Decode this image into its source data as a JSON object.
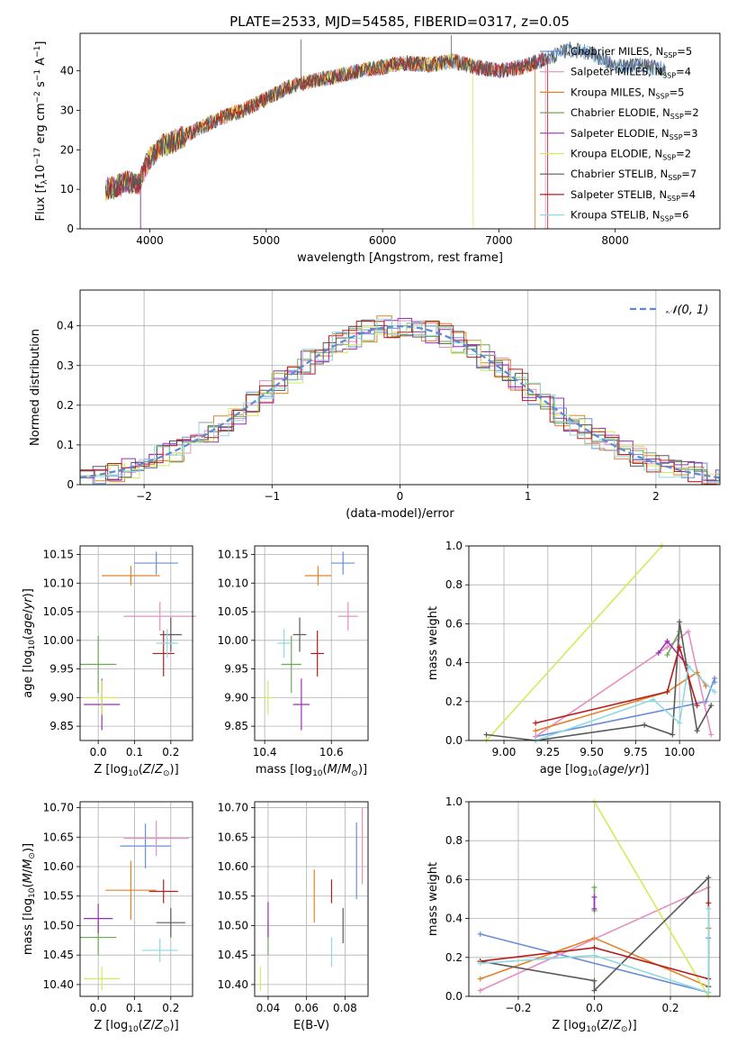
{
  "figure": {
    "title": "PLATE=2533, MJD=54585, FIBERID=0317, z=0.05"
  },
  "colors": {
    "Chabrier MILES": "#6b8ed8",
    "Salpeter MILES": "#e68fc2",
    "Kroupa MILES": "#e2822b",
    "Chabrier ELODIE": "#6ea75a",
    "Salpeter ELODIE": "#9b2fb8",
    "Kroupa ELODIE": "#d4ea5c",
    "Chabrier STELIB": "#5a5a5a",
    "Salpeter STELIB": "#b81d1d",
    "Kroupa STELIB": "#8fd9e0",
    "normal": "#5b8ad3"
  },
  "chart_data": [
    {
      "id": "spectrum",
      "type": "line",
      "title": "PLATE=2533, MJD=54585, FIBERID=0317, z=0.05",
      "xlabel": "wavelength [Angstrom, rest frame]",
      "ylabel": "Flux [f_λ 10^-17 erg cm^-2 s^-1 A^-1]",
      "xlim": [
        3400,
        8900
      ],
      "ylim": [
        0,
        49.5
      ],
      "xticks": [
        4000,
        5000,
        6000,
        7000,
        8000
      ],
      "yticks": [
        0,
        10,
        20,
        30,
        40
      ],
      "grid": false,
      "legend_position": "top-right",
      "legend": [
        "Chabrier MILES, N_SSP=5",
        "Salpeter MILES, N_SSP=4",
        "Kroupa MILES, N_SSP=5",
        "Chabrier ELODIE, N_SSP=2",
        "Salpeter ELODIE, N_SSP=3",
        "Kroupa ELODIE, N_SSP=2",
        "Chabrier STELIB, N_SSP=7",
        "Salpeter STELIB, N_SSP=4",
        "Kroupa STELIB, N_SSP=6"
      ],
      "continuum": {
        "x": [
          3620,
          3700,
          3800,
          3900,
          3950,
          4000,
          4100,
          4200,
          4400,
          4600,
          4800,
          5000,
          5200,
          5400,
          5600,
          5800,
          6000,
          6200,
          6400,
          6600,
          6800,
          7000,
          7200,
          7400,
          7500,
          7600,
          7800,
          8000,
          8200,
          8500,
          8800
        ],
        "y": [
          10,
          10.5,
          12,
          11,
          15,
          18,
          21,
          22,
          25,
          28,
          30,
          33,
          36,
          37.5,
          38.5,
          40,
          41,
          42,
          41.5,
          42.5,
          41,
          40,
          41,
          43,
          44,
          45.5,
          44.5,
          41,
          41.5,
          40,
          40
        ]
      },
      "series_x_end": [
        8440,
        7400,
        7310,
        3920,
        3920,
        6780,
        8440,
        7420,
        8440
      ],
      "spikes": [
        {
          "x": 5300,
          "y": 48
        },
        {
          "x": 6590,
          "y": 49
        }
      ]
    },
    {
      "id": "residuals",
      "type": "step",
      "xlabel": "(data-model)/error",
      "ylabel": "Normed distribution",
      "xlim": [
        -2.5,
        2.5
      ],
      "ylim": [
        0,
        0.49
      ],
      "xticks": [
        -2,
        -1,
        0,
        1,
        2
      ],
      "yticks": [
        0,
        0.1,
        0.2,
        0.3,
        0.4
      ],
      "grid": true,
      "legend_position": "top-right",
      "legend": [
        "𝒩(0, 1)"
      ]
    },
    {
      "id": "age_vs_Z",
      "type": "errorbar",
      "xlabel": "Z [log10(Z/Z⊙)]",
      "ylabel": "age [log10(age/yr)]",
      "xlim": [
        -0.05,
        0.26
      ],
      "ylim": [
        9.825,
        10.165
      ],
      "xticks": [
        0,
        0.1,
        0.2
      ],
      "yticks": [
        9.85,
        9.9,
        9.95,
        10,
        10.05,
        10.1,
        10.15
      ],
      "points": [
        {
          "name": "Chabrier MILES",
          "x": 0.16,
          "y": 10.135,
          "xerr": 0.06,
          "yerr": 0.02
        },
        {
          "name": "Salpeter MILES",
          "x": 0.17,
          "y": 10.042,
          "xerr": 0.1,
          "yerr": 0.025
        },
        {
          "name": "Kroupa MILES",
          "x": 0.09,
          "y": 10.113,
          "xerr": 0.08,
          "yerr": 0.017
        },
        {
          "name": "Chabrier ELODIE",
          "x": 0,
          "y": 9.958,
          "xerr": 0.05,
          "yerr": 0.05
        },
        {
          "name": "Salpeter ELODIE",
          "x": 0.01,
          "y": 9.888,
          "xerr": 0.05,
          "yerr": 0.045
        },
        {
          "name": "Kroupa ELODIE",
          "x": 0.01,
          "y": 9.9,
          "xerr": 0.05,
          "yerr": 0.03
        },
        {
          "name": "Chabrier STELIB",
          "x": 0.2,
          "y": 10.01,
          "xerr": 0.03,
          "yerr": 0.03
        },
        {
          "name": "Salpeter STELIB",
          "x": 0.18,
          "y": 9.977,
          "xerr": 0.03,
          "yerr": 0.04
        },
        {
          "name": "Kroupa STELIB",
          "x": 0.19,
          "y": 9.995,
          "xerr": 0.03,
          "yerr": 0.025
        }
      ]
    },
    {
      "id": "age_vs_mass",
      "type": "errorbar",
      "xlabel": "mass [log10(M/M⊙)]",
      "ylabel": "",
      "xlim": [
        10.37,
        10.71
      ],
      "ylim": [
        9.825,
        10.165
      ],
      "xticks": [
        10.4,
        10.6
      ],
      "yticks": [
        9.85,
        9.9,
        9.95,
        10,
        10.05,
        10.1,
        10.15
      ],
      "points": [
        {
          "name": "Chabrier MILES",
          "x": 10.635,
          "y": 10.135,
          "xerr": 0.035,
          "yerr": 0.02
        },
        {
          "name": "Salpeter MILES",
          "x": 10.65,
          "y": 10.042,
          "xerr": 0.03,
          "yerr": 0.025
        },
        {
          "name": "Kroupa MILES",
          "x": 10.56,
          "y": 10.113,
          "xerr": 0.04,
          "yerr": 0.017
        },
        {
          "name": "Chabrier ELODIE",
          "x": 10.48,
          "y": 9.958,
          "xerr": 0.03,
          "yerr": 0.05
        },
        {
          "name": "Salpeter ELODIE",
          "x": 10.51,
          "y": 9.888,
          "xerr": 0.025,
          "yerr": 0.045
        },
        {
          "name": "Kroupa ELODIE",
          "x": 10.41,
          "y": 9.9,
          "xerr": 0.02,
          "yerr": 0.03
        },
        {
          "name": "Chabrier STELIB",
          "x": 10.505,
          "y": 10.01,
          "xerr": 0.02,
          "yerr": 0.03
        },
        {
          "name": "Salpeter STELIB",
          "x": 10.558,
          "y": 9.977,
          "xerr": 0.02,
          "yerr": 0.04
        },
        {
          "name": "Kroupa STELIB",
          "x": 10.458,
          "y": 9.995,
          "xerr": 0.02,
          "yerr": 0.025
        }
      ]
    },
    {
      "id": "weight_vs_age",
      "type": "line",
      "xlabel": "age [log10(age/yr)]",
      "ylabel": "mass weight",
      "xlim": [
        8.8,
        10.23
      ],
      "ylim": [
        0,
        1
      ],
      "xticks": [
        9,
        9.25,
        9.5,
        9.75,
        10
      ],
      "yticks": [
        0,
        0.2,
        0.4,
        0.6,
        0.8,
        1
      ],
      "grid": true,
      "series": [
        {
          "name": "Chabrier MILES",
          "x": [
            9.18,
            10.15,
            10.2,
            10.2
          ],
          "y": [
            0.02,
            0.2,
            0.32,
            0.3
          ]
        },
        {
          "name": "Salpeter MILES",
          "x": [
            9.18,
            9.93,
            10.05,
            10.18
          ],
          "y": [
            0.02,
            0.48,
            0.56,
            0.03
          ]
        },
        {
          "name": "Kroupa MILES",
          "x": [
            9.18,
            9.93,
            10.1,
            10.15
          ],
          "y": [
            0.05,
            0.25,
            0.35,
            0.28
          ]
        },
        {
          "name": "Chabrier ELODIE",
          "x": [
            9.93,
            10.0
          ],
          "y": [
            0.44,
            0.56
          ]
        },
        {
          "name": "Salpeter ELODIE",
          "x": [
            9.88,
            9.93,
            10.05
          ],
          "y": [
            0.45,
            0.51,
            0.38
          ]
        },
        {
          "name": "Kroupa ELODIE",
          "x": [
            8.9,
            9.9
          ],
          "y": [
            0,
            1.0
          ]
        },
        {
          "name": "Chabrier STELIB",
          "x": [
            8.9,
            9.18,
            9.8,
            9.96,
            10.0,
            10.1,
            10.18
          ],
          "y": [
            0.03,
            0.0,
            0.08,
            0.03,
            0.61,
            0.05,
            0.18
          ]
        },
        {
          "name": "Salpeter STELIB",
          "x": [
            9.18,
            9.93,
            10.0,
            10.1
          ],
          "y": [
            0.09,
            0.25,
            0.48,
            0.18
          ]
        },
        {
          "name": "Kroupa STELIB",
          "x": [
            9.18,
            9.85,
            10.0,
            10.05,
            10.2
          ],
          "y": [
            0.0,
            0.21,
            0.09,
            0.38,
            0.25
          ]
        }
      ]
    },
    {
      "id": "mass_vs_Z",
      "type": "errorbar",
      "xlabel": "Z [log10(Z/Z⊙)]",
      "ylabel": "mass [log10(M/M⊙)]",
      "xlim": [
        -0.05,
        0.26
      ],
      "ylim": [
        10.38,
        10.71
      ],
      "xticks": [
        0,
        0.1,
        0.2
      ],
      "yticks": [
        10.4,
        10.45,
        10.5,
        10.55,
        10.6,
        10.65,
        10.7
      ],
      "points": [
        {
          "name": "Chabrier MILES",
          "x": 0.13,
          "y": 10.635,
          "xerr": 0.07,
          "yerr": 0.038
        },
        {
          "name": "Salpeter MILES",
          "x": 0.16,
          "y": 10.648,
          "xerr": 0.09,
          "yerr": 0.03
        },
        {
          "name": "Kroupa MILES",
          "x": 0.09,
          "y": 10.56,
          "xerr": 0.07,
          "yerr": 0.05
        },
        {
          "name": "Chabrier ELODIE",
          "x": 0,
          "y": 10.48,
          "xerr": 0.05,
          "yerr": 0.03
        },
        {
          "name": "Salpeter ELODIE",
          "x": 0,
          "y": 10.512,
          "xerr": 0.04,
          "yerr": 0.025
        },
        {
          "name": "Kroupa ELODIE",
          "x": 0.01,
          "y": 10.41,
          "xerr": 0.05,
          "yerr": 0.02
        },
        {
          "name": "Chabrier STELIB",
          "x": 0.2,
          "y": 10.505,
          "xerr": 0.04,
          "yerr": 0.025
        },
        {
          "name": "Salpeter STELIB",
          "x": 0.18,
          "y": 10.558,
          "xerr": 0.04,
          "yerr": 0.02
        },
        {
          "name": "Kroupa STELIB",
          "x": 0.17,
          "y": 10.458,
          "xerr": 0.05,
          "yerr": 0.02
        }
      ]
    },
    {
      "id": "mass_vs_ebv",
      "type": "errorbar",
      "xlabel": "E(B-V)",
      "ylabel": "",
      "xlim": [
        0.033,
        0.092
      ],
      "ylim": [
        10.38,
        10.71
      ],
      "xticks": [
        0.04,
        0.06,
        0.08
      ],
      "yticks": [
        10.4,
        10.45,
        10.5,
        10.55,
        10.6,
        10.65,
        10.7
      ],
      "points": [
        {
          "name": "Chabrier MILES",
          "x": 0.086,
          "y": 10.61,
          "xerr": 0,
          "yerr": 0.065
        },
        {
          "name": "Salpeter MILES",
          "x": 0.089,
          "y": 10.635,
          "xerr": 0,
          "yerr": 0.065
        },
        {
          "name": "Kroupa MILES",
          "x": 0.064,
          "y": 10.55,
          "xerr": 0,
          "yerr": 0.045
        },
        {
          "name": "Chabrier ELODIE",
          "x": 0.04,
          "y": 10.48,
          "xerr": 0,
          "yerr": 0.03
        },
        {
          "name": "Salpeter ELODIE",
          "x": 0.04,
          "y": 10.51,
          "xerr": 0,
          "yerr": 0.03
        },
        {
          "name": "Kroupa ELODIE",
          "x": 0.036,
          "y": 10.41,
          "xerr": 0,
          "yerr": 0.02
        },
        {
          "name": "Chabrier STELIB",
          "x": 0.079,
          "y": 10.5,
          "xerr": 0,
          "yerr": 0.03
        },
        {
          "name": "Salpeter STELIB",
          "x": 0.073,
          "y": 10.558,
          "xerr": 0,
          "yerr": 0.02
        },
        {
          "name": "Kroupa STELIB",
          "x": 0.073,
          "y": 10.455,
          "xerr": 0,
          "yerr": 0.025
        }
      ]
    },
    {
      "id": "weight_vs_Z",
      "type": "line",
      "xlabel": "Z [log10(Z/Z⊙)]",
      "ylabel": "mass weight",
      "xlim": [
        -0.33,
        0.33
      ],
      "ylim": [
        0,
        1
      ],
      "xticks": [
        -0.2,
        0,
        0.2
      ],
      "yticks": [
        0,
        0.2,
        0.4,
        0.6,
        0.8,
        1
      ],
      "grid": true,
      "series": [
        {
          "name": "Chabrier MILES",
          "x": [
            -0.3,
            0.3,
            0.3
          ],
          "y": [
            0.32,
            0.02,
            0.3
          ]
        },
        {
          "name": "Salpeter MILES",
          "x": [
            -0.3,
            0.3,
            0.3
          ],
          "y": [
            0.03,
            0.56,
            0.35
          ]
        },
        {
          "name": "Kroupa MILES",
          "x": [
            -0.3,
            0.0,
            0.3,
            0.3
          ],
          "y": [
            0.09,
            0.3,
            0.05,
            0.35
          ]
        },
        {
          "name": "Chabrier ELODIE",
          "x": [
            0.0,
            0.0
          ],
          "y": [
            0.44,
            0.56
          ]
        },
        {
          "name": "Salpeter ELODIE",
          "x": [
            0.0,
            0.0
          ],
          "y": [
            0.45,
            0.51
          ]
        },
        {
          "name": "Kroupa ELODIE",
          "x": [
            0.0,
            0.3
          ],
          "y": [
            1.0,
            0.0
          ]
        },
        {
          "name": "Chabrier STELIB",
          "x": [
            -0.3,
            0.0,
            0.0,
            0.3,
            0.3
          ],
          "y": [
            0.18,
            0.08,
            0.03,
            0.61,
            0.05
          ]
        },
        {
          "name": "Salpeter STELIB",
          "x": [
            -0.3,
            0.0,
            0.3,
            0.3
          ],
          "y": [
            0.18,
            0.25,
            0.09,
            0.48
          ]
        },
        {
          "name": "Kroupa STELIB",
          "x": [
            -0.3,
            0.0,
            0.3,
            0.3
          ],
          "y": [
            0.17,
            0.21,
            0.02,
            0.45
          ]
        }
      ]
    }
  ]
}
